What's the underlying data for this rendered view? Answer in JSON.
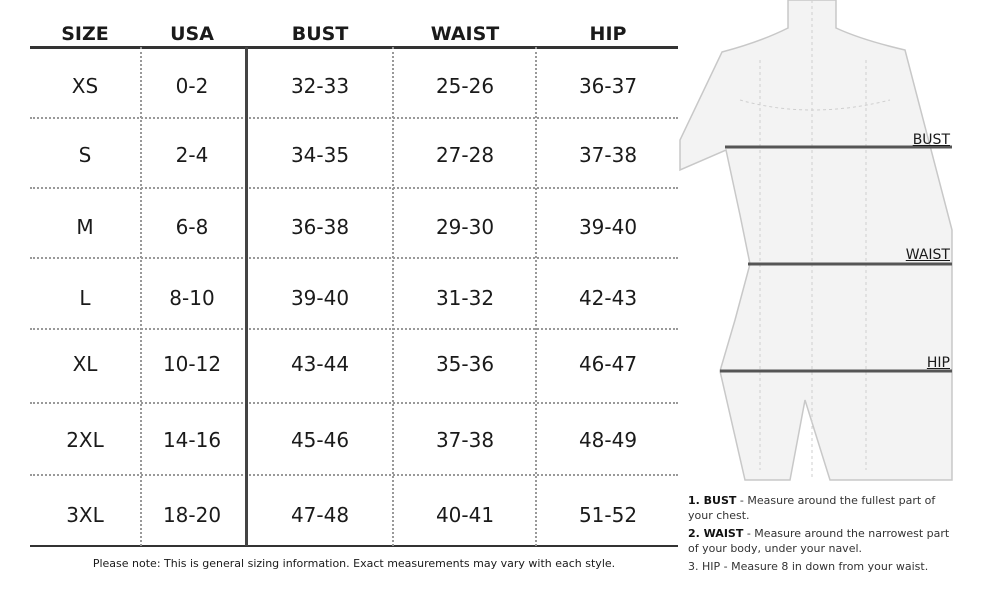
{
  "table": {
    "headers": [
      "SIZE",
      "USA",
      "BUST",
      "WAIST",
      "HIP"
    ],
    "rows": [
      [
        "XS",
        "0-2",
        "32-33",
        "25-26",
        "36-37"
      ],
      [
        "S",
        "2-4",
        "34-35",
        "27-28",
        "37-38"
      ],
      [
        "M",
        "6-8",
        "36-38",
        "29-30",
        "39-40"
      ],
      [
        "L",
        "8-10",
        "39-40",
        "31-32",
        "42-43"
      ],
      [
        "XL",
        "10-12",
        "43-44",
        "35-36",
        "46-47"
      ],
      [
        "2XL",
        "14-16",
        "45-46",
        "37-38",
        "48-49"
      ],
      [
        "3XL",
        "18-20",
        "47-48",
        "40-41",
        "51-52"
      ]
    ]
  },
  "note": "Please note: This is general sizing information. Exact measurements may vary with each style.",
  "figure": {
    "labels": [
      "BUST",
      "WAIST",
      "HIP"
    ]
  },
  "instructions": [
    {
      "label": "1. BUST",
      "text": "- Measure around the fullest part of your chest."
    },
    {
      "label": "2. WAIST",
      "text": "- Measure around the narrowest part of your body, under your navel."
    },
    {
      "label": "3. HIP",
      "text": "- Measure 8 in  down from your waist."
    }
  ]
}
